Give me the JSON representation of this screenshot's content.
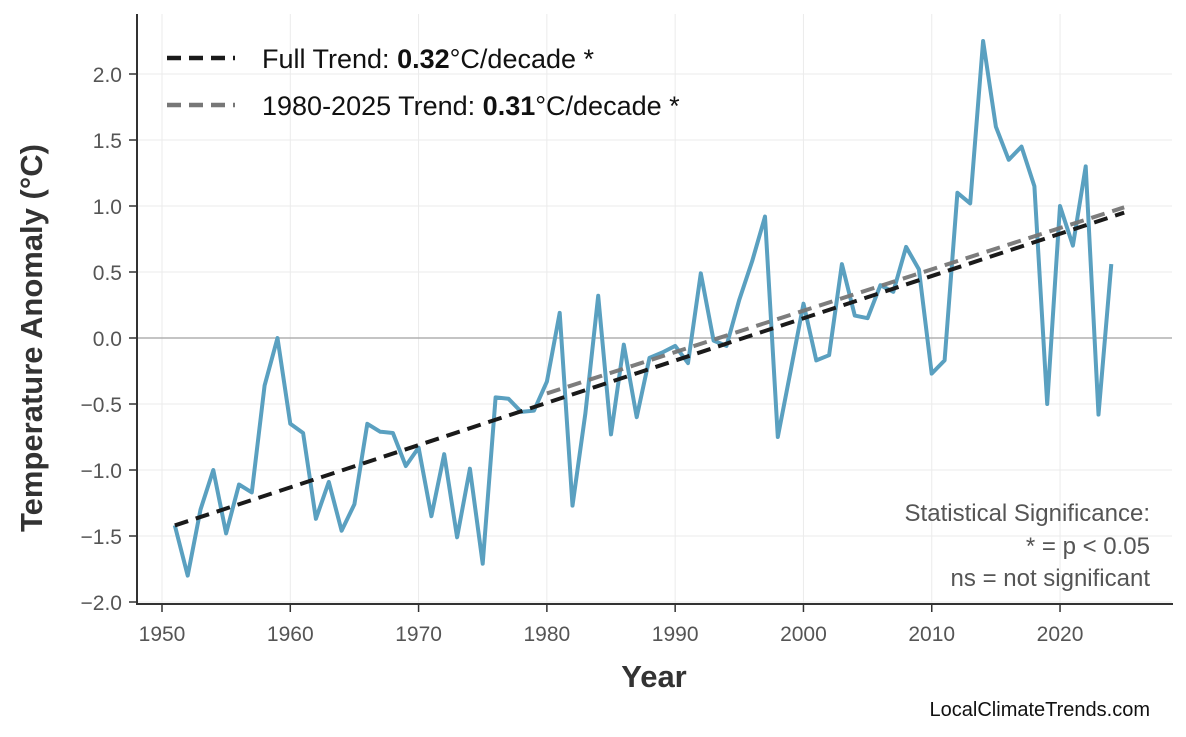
{
  "chart_data": {
    "type": "line",
    "xlabel": "Year",
    "ylabel": "Temperature Anomaly (°C)",
    "xlim": [
      1948,
      2029
    ],
    "ylim": [
      -2.02,
      2.45
    ],
    "xticks": [
      1950,
      1960,
      1970,
      1980,
      1990,
      2000,
      2010,
      2020
    ],
    "yticks": [
      -2.0,
      -1.5,
      -1.0,
      -0.5,
      0.0,
      0.5,
      1.0,
      1.5,
      2.0
    ],
    "ytick_labels": [
      "−2.0",
      "−1.5",
      "−1.0",
      "−0.5",
      "0.0",
      "0.5",
      "1.0",
      "1.5",
      "2.0"
    ],
    "grid": true,
    "line_color": "#5aa0c0",
    "x": [
      1951,
      1952,
      1953,
      1954,
      1955,
      1956,
      1957,
      1958,
      1959,
      1960,
      1961,
      1962,
      1963,
      1964,
      1965,
      1966,
      1967,
      1968,
      1969,
      1970,
      1971,
      1972,
      1973,
      1974,
      1975,
      1976,
      1977,
      1978,
      1979,
      1980,
      1981,
      1982,
      1983,
      1984,
      1985,
      1986,
      1987,
      1988,
      1989,
      1990,
      1991,
      1992,
      1993,
      1994,
      1995,
      1996,
      1997,
      1998,
      1999,
      2000,
      2001,
      2002,
      2003,
      2004,
      2005,
      2006,
      2007,
      2008,
      2009,
      2010,
      2011,
      2012,
      2013,
      2014,
      2015,
      2016,
      2017,
      2018,
      2019,
      2020,
      2021,
      2022,
      2023,
      2024
    ],
    "y": [
      -1.42,
      -1.8,
      -1.3,
      -1.0,
      -1.48,
      -1.11,
      -1.17,
      -0.36,
      0.0,
      -0.65,
      -0.72,
      -1.37,
      -1.09,
      -1.46,
      -1.26,
      -0.65,
      -0.71,
      -0.72,
      -0.97,
      -0.83,
      -1.35,
      -0.88,
      -1.51,
      -0.99,
      -1.71,
      -0.45,
      -0.46,
      -0.56,
      -0.55,
      -0.33,
      0.19,
      -1.27,
      -0.57,
      0.32,
      -0.73,
      -0.05,
      -0.6,
      -0.15,
      -0.11,
      -0.06,
      -0.19,
      0.49,
      -0.02,
      -0.06,
      0.29,
      0.58,
      0.92,
      -0.75,
      -0.25,
      0.26,
      -0.17,
      -0.13,
      0.56,
      0.17,
      0.15,
      0.4,
      0.35,
      0.69,
      0.52,
      -0.27,
      -0.17,
      1.1,
      1.02,
      2.25,
      1.6,
      1.35,
      1.45,
      1.15,
      -0.5,
      1.0,
      0.7,
      1.3,
      -0.58,
      0.56
    ],
    "trends": [
      {
        "label_prefix": "Full Trend: ",
        "value": "0.32",
        "label_suffix": "°C/decade *",
        "x": [
          1951,
          2025
        ],
        "y": [
          -1.42,
          0.95
        ],
        "color": "#1a1a1a"
      },
      {
        "label_prefix": "1980-2025 Trend: ",
        "value": "0.31",
        "label_suffix": "°C/decade *",
        "x": [
          1980,
          2025
        ],
        "y": [
          -0.42,
          0.99
        ],
        "color": "#777777"
      }
    ],
    "legend_position": "top-left",
    "annotation": [
      "Statistical Significance:",
      "* = p < 0.05",
      "ns = not significant"
    ],
    "source": "LocalClimateTrends.com"
  }
}
